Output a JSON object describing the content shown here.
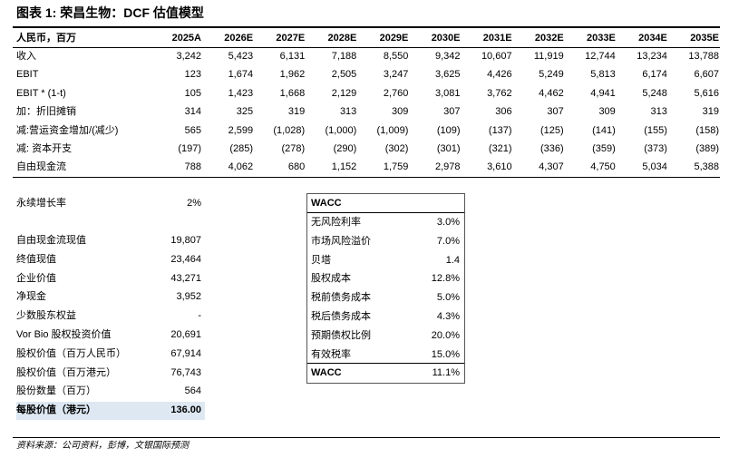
{
  "title": "图表 1: 荣昌生物：DCF 估值模型",
  "table": {
    "header": [
      "人民币，百万",
      "2025A",
      "2026E",
      "2027E",
      "2028E",
      "2029E",
      "2030E",
      "2031E",
      "2032E",
      "2033E",
      "2034E",
      "2035E"
    ],
    "rows": [
      [
        "收入",
        "3,242",
        "5,423",
        "6,131",
        "7,188",
        "8,550",
        "9,342",
        "10,607",
        "11,919",
        "12,744",
        "13,234",
        "13,788"
      ],
      [
        "EBIT",
        "123",
        "1,674",
        "1,962",
        "2,505",
        "3,247",
        "3,625",
        "4,426",
        "5,249",
        "5,813",
        "6,174",
        "6,607"
      ],
      [
        "EBIT * (1-t)",
        "105",
        "1,423",
        "1,668",
        "2,129",
        "2,760",
        "3,081",
        "3,762",
        "4,462",
        "4,941",
        "5,248",
        "5,616"
      ],
      [
        "加：折旧摊销",
        "314",
        "325",
        "319",
        "313",
        "309",
        "307",
        "306",
        "307",
        "309",
        "313",
        "319"
      ],
      [
        "减:营运资金增加/(减少)",
        "565",
        "2,599",
        "(1,028)",
        "(1,000)",
        "(1,009)",
        "(109)",
        "(137)",
        "(125)",
        "(141)",
        "(155)",
        "(158)"
      ],
      [
        "减: 资本开支",
        "(197)",
        "(285)",
        "(278)",
        "(290)",
        "(302)",
        "(301)",
        "(321)",
        "(336)",
        "(359)",
        "(373)",
        "(389)"
      ],
      [
        "自由现金流",
        "788",
        "4,062",
        "680",
        "1,152",
        "1,759",
        "2,978",
        "3,610",
        "4,307",
        "4,750",
        "5,034",
        "5,388"
      ]
    ]
  },
  "valuation": [
    [
      "永续增长率",
      "2%"
    ],
    [
      "自由现金流现值",
      "19,807"
    ],
    [
      "终值现值",
      "23,464"
    ],
    [
      "企业价值",
      "43,271"
    ],
    [
      "净现金",
      "3,952"
    ],
    [
      "少数股东权益",
      "-"
    ],
    [
      "Vor Bio 股权投资价值",
      "20,691"
    ],
    [
      "股权价值（百万人民币）",
      "67,914"
    ],
    [
      "股权价值（百万港元）",
      "76,743"
    ],
    [
      "股份数量（百万）",
      "564"
    ],
    [
      "每股价值（港元）",
      "136.00"
    ]
  ],
  "wacc": {
    "title": "WACC",
    "rows": [
      [
        "无风险利率",
        "3.0%"
      ],
      [
        "市场风险溢价",
        "7.0%"
      ],
      [
        "贝塔",
        "1.4"
      ],
      [
        "股权成本",
        "12.8%"
      ],
      [
        "税前债务成本",
        "5.0%"
      ],
      [
        "税后债务成本",
        "4.3%"
      ],
      [
        "预期债权比例",
        "20.0%"
      ],
      [
        "有效税率",
        "15.0%"
      ],
      [
        "WACC",
        "11.1%"
      ]
    ]
  },
  "source": "资料来源：公司资料，彭博，文银国际预测"
}
